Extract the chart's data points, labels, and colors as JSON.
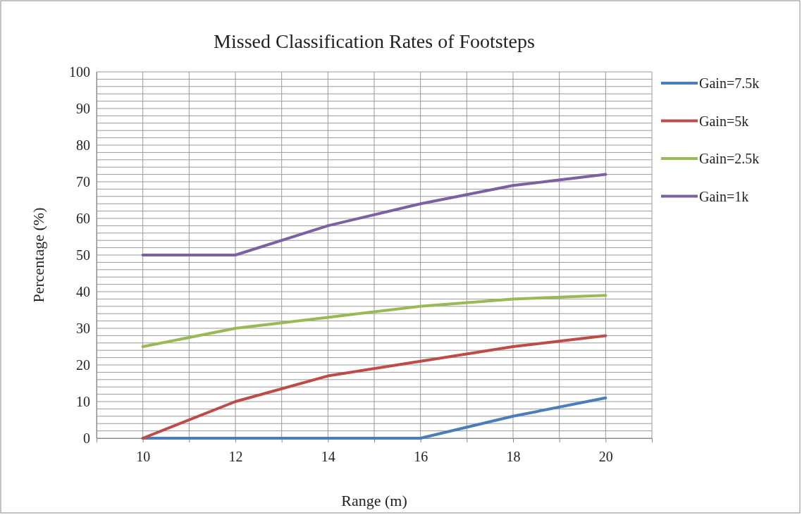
{
  "chart_data": {
    "type": "line",
    "title": "Missed Classification Rates of Footsteps",
    "xlabel": "Range (m)",
    "ylabel": "Percentage (%)",
    "x": [
      10,
      12,
      14,
      16,
      18,
      20
    ],
    "xlim": [
      9,
      21
    ],
    "xticks": [
      {
        "value": 9,
        "label": null
      },
      10,
      {
        "value": 11,
        "label": null
      },
      12,
      {
        "value": 13,
        "label": null
      },
      14,
      {
        "value": 15,
        "label": null
      },
      16,
      {
        "value": 17,
        "label": null
      },
      18,
      {
        "value": 19,
        "label": null
      },
      20,
      {
        "value": 21,
        "label": null
      }
    ],
    "ylim": [
      0,
      100
    ],
    "yticks": [
      0,
      {
        "value": 2,
        "label": null
      },
      {
        "value": 4,
        "label": null
      },
      {
        "value": 6,
        "label": null
      },
      {
        "value": 8,
        "label": null
      },
      10,
      {
        "value": 12,
        "label": null
      },
      {
        "value": 14,
        "label": null
      },
      {
        "value": 16,
        "label": null
      },
      {
        "value": 18,
        "label": null
      },
      20,
      {
        "value": 22,
        "label": null
      },
      {
        "value": 24,
        "label": null
      },
      {
        "value": 26,
        "label": null
      },
      {
        "value": 28,
        "label": null
      },
      30,
      {
        "value": 32,
        "label": null
      },
      {
        "value": 34,
        "label": null
      },
      {
        "value": 36,
        "label": null
      },
      {
        "value": 38,
        "label": null
      },
      40,
      {
        "value": 42,
        "label": null
      },
      {
        "value": 44,
        "label": null
      },
      {
        "value": 46,
        "label": null
      },
      {
        "value": 48,
        "label": null
      },
      50,
      {
        "value": 52,
        "label": null
      },
      {
        "value": 54,
        "label": null
      },
      {
        "value": 56,
        "label": null
      },
      {
        "value": 58,
        "label": null
      },
      60,
      {
        "value": 62,
        "label": null
      },
      {
        "value": 64,
        "label": null
      },
      {
        "value": 66,
        "label": null
      },
      {
        "value": 68,
        "label": null
      },
      70,
      {
        "value": 72,
        "label": null
      },
      {
        "value": 74,
        "label": null
      },
      {
        "value": 76,
        "label": null
      },
      {
        "value": 78,
        "label": null
      },
      80,
      {
        "value": 82,
        "label": null
      },
      {
        "value": 84,
        "label": null
      },
      {
        "value": 86,
        "label": null
      },
      {
        "value": 88,
        "label": null
      },
      90,
      {
        "value": 92,
        "label": null
      },
      {
        "value": 94,
        "label": null
      },
      {
        "value": 96,
        "label": null
      },
      {
        "value": 98,
        "label": null
      },
      100
    ],
    "grid": true,
    "legend": "right",
    "marker": "none",
    "line_style": "solid",
    "series": [
      {
        "name": "Gain=7.5k",
        "color": "#4a7ebb",
        "values": [
          0,
          0,
          0,
          0,
          6,
          11
        ]
      },
      {
        "name": "Gain=5k",
        "color": "#be4b48",
        "values": [
          0,
          10,
          17,
          21,
          25,
          28
        ]
      },
      {
        "name": "Gain=2.5k",
        "color": "#98b954",
        "values": [
          25,
          30,
          33,
          36,
          38,
          39
        ]
      },
      {
        "name": "Gain=1k",
        "color": "#7d60a0",
        "values": [
          50,
          50,
          58,
          64,
          69,
          72
        ]
      }
    ]
  }
}
